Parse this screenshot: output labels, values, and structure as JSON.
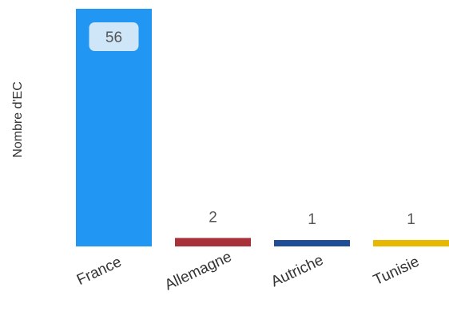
{
  "chart_data": {
    "type": "bar",
    "categories": [
      "France",
      "Allemagne",
      "Autriche",
      "Tunisie"
    ],
    "values": [
      56,
      2,
      1,
      1
    ],
    "colors": [
      "#2196f3",
      "#a83239",
      "#1f4e96",
      "#e6b800"
    ],
    "ylabel": "Nombre d'EC",
    "ylim": [
      0,
      56
    ],
    "grid": false,
    "legend": "none",
    "highlight_label_color": "#cfe6f8"
  }
}
